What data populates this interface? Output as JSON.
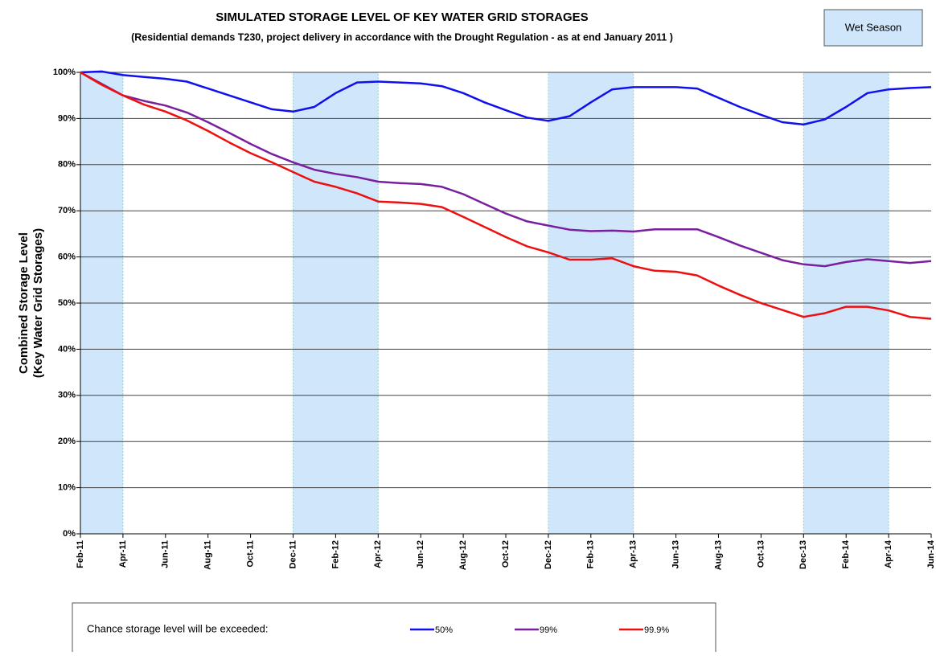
{
  "chart_data": {
    "type": "line",
    "title": "SIMULATED STORAGE LEVEL OF KEY WATER GRID STORAGES",
    "subtitle": "(Residential demands T230,  project delivery in accordance with the Drought Regulation - as at end January 2011 )",
    "y_label": [
      "Combined Storage Level",
      "(Key Water Grid Storages)"
    ],
    "categories": [
      "Feb-11",
      null,
      "Apr-11",
      null,
      "Jun-11",
      null,
      "Aug-11",
      null,
      "Oct-11",
      null,
      "Dec-11",
      null,
      "Feb-12",
      null,
      "Apr-12",
      null,
      "Jun-12",
      null,
      "Aug-12",
      null,
      "Oct-12",
      null,
      "Dec-12",
      null,
      "Feb-13",
      null,
      "Apr-13",
      null,
      "Jun-13",
      null,
      "Aug-13",
      null,
      "Oct-13",
      null,
      "Dec-13",
      null,
      "Feb-14",
      null,
      "Apr-14",
      null,
      "Jun-14"
    ],
    "series": [
      {
        "name": "50%",
        "color": "#1010ee",
        "values": [
          100,
          100.2,
          99.4,
          99,
          98.6,
          98,
          96.5,
          95,
          93.5,
          92,
          91.5,
          92.5,
          95.5,
          97.8,
          98,
          97.8,
          97.6,
          97,
          95.5,
          93.5,
          91.8,
          90.2,
          89.5,
          90.5,
          93.5,
          96.3,
          96.8,
          96.8,
          96.8,
          96.5,
          94.5,
          92.5,
          90.8,
          89.2,
          88.7,
          89.8,
          92.5,
          95.5,
          96.3,
          96.6,
          96.8
        ]
      },
      {
        "name": "99%",
        "color": "#7a1f9e",
        "values": [
          100,
          97.5,
          95,
          93.8,
          92.8,
          91.3,
          89.2,
          86.9,
          84.5,
          82.3,
          80.5,
          78.9,
          78,
          77.3,
          76.3,
          76,
          75.8,
          75.2,
          73.6,
          71.5,
          69.4,
          67.7,
          66.8,
          65.9,
          65.6,
          65.7,
          65.5,
          66,
          66,
          66,
          64.3,
          62.5,
          60.9,
          59.3,
          58.4,
          58,
          58.9,
          59.5,
          59.1,
          58.7,
          59.1
        ]
      },
      {
        "name": "99.9%",
        "color": "#ee1010",
        "values": [
          100,
          97.3,
          95,
          93,
          91.5,
          89.6,
          87.3,
          84.8,
          82.5,
          80.5,
          78.4,
          76.3,
          75.2,
          73.8,
          72,
          71.8,
          71.5,
          70.8,
          68.7,
          66.5,
          64.3,
          62.3,
          61,
          59.4,
          59.4,
          59.7,
          58,
          57,
          56.8,
          56,
          53.8,
          51.8,
          50,
          48.5,
          47,
          47.8,
          49.2,
          49.2,
          48.4,
          47,
          46.6
        ]
      }
    ],
    "ylim": [
      0,
      100
    ],
    "yticks": [
      {
        "value": 0,
        "label": "0%"
      },
      {
        "value": 10,
        "label": "10%"
      },
      {
        "value": 20,
        "label": "20%"
      },
      {
        "value": 30,
        "label": "30%"
      },
      {
        "value": 40,
        "label": "40%"
      },
      {
        "value": 50,
        "label": "50%"
      },
      {
        "value": 60,
        "label": "60%"
      },
      {
        "value": 70,
        "label": "70%"
      },
      {
        "value": 80,
        "label": "80%"
      },
      {
        "value": 90,
        "label": "90%"
      },
      {
        "value": 100,
        "label": "100%"
      }
    ],
    "grid": true,
    "legend_title": "Chance storage level will be exceeded:",
    "wet_season": {
      "label": "Wet Season",
      "color": "#cfe6fb",
      "periods": [
        [
          "Feb-11",
          "Apr-11"
        ],
        [
          "Dec-11",
          "Apr-12"
        ],
        [
          "Dec-12",
          "Apr-13"
        ],
        [
          "Dec-13",
          "Apr-14"
        ]
      ]
    }
  }
}
